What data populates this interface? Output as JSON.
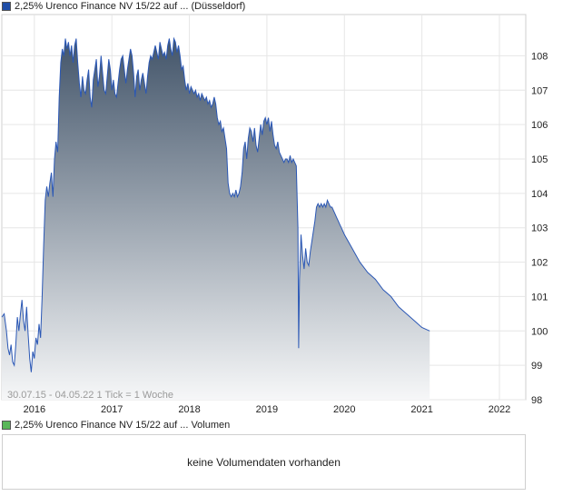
{
  "legend_price": {
    "label": "2,25% Urenco Finance NV 15/22 auf ... (Düsseldorf)",
    "color": "#1f4ea8"
  },
  "legend_volume": {
    "label": "2,25% Urenco Finance NV 15/22 auf ... Volumen",
    "color": "#59b759"
  },
  "range_label": "30.07.15 - 04.05.22   1 Tick = 1 Woche",
  "volume_message": "keine Volumendaten vorhanden",
  "chart_data": {
    "type": "area",
    "y_ticks": [
      98,
      99,
      100,
      101,
      102,
      103,
      104,
      105,
      106,
      107,
      108
    ],
    "ylim": [
      98,
      109.2
    ],
    "xlim": [
      2015.58,
      2022.34
    ],
    "x_ticks": [
      {
        "label": "2016",
        "x": 2016.0
      },
      {
        "label": "2017",
        "x": 2017.0
      },
      {
        "label": "2018",
        "x": 2018.0
      },
      {
        "label": "2019",
        "x": 2019.0
      },
      {
        "label": "2020",
        "x": 2020.0
      },
      {
        "label": "2021",
        "x": 2021.0
      },
      {
        "label": "2022",
        "x": 2022.0
      }
    ],
    "grid": true,
    "series": [
      {
        "line_color": "#2a57b5",
        "fill_top": "#43556a",
        "fill_bottom": "#f6f7f8",
        "points": [
          [
            2015.58,
            100.4
          ],
          [
            2015.61,
            100.5
          ],
          [
            2015.64,
            100.0
          ],
          [
            2015.66,
            99.5
          ],
          [
            2015.68,
            99.3
          ],
          [
            2015.7,
            99.6
          ],
          [
            2015.72,
            99.1
          ],
          [
            2015.74,
            99.0
          ],
          [
            2015.76,
            99.6
          ],
          [
            2015.78,
            100.4
          ],
          [
            2015.8,
            100.0
          ],
          [
            2015.82,
            100.5
          ],
          [
            2015.84,
            100.9
          ],
          [
            2015.86,
            100.3
          ],
          [
            2015.88,
            100.0
          ],
          [
            2015.9,
            100.7
          ],
          [
            2015.92,
            99.9
          ],
          [
            2015.94,
            99.2
          ],
          [
            2015.96,
            98.8
          ],
          [
            2015.98,
            99.4
          ],
          [
            2016.0,
            99.2
          ],
          [
            2016.02,
            99.8
          ],
          [
            2016.04,
            99.6
          ],
          [
            2016.06,
            100.2
          ],
          [
            2016.08,
            99.8
          ],
          [
            2016.1,
            101.0
          ],
          [
            2016.12,
            102.5
          ],
          [
            2016.14,
            103.8
          ],
          [
            2016.16,
            104.2
          ],
          [
            2016.18,
            103.9
          ],
          [
            2016.2,
            104.3
          ],
          [
            2016.22,
            104.6
          ],
          [
            2016.24,
            103.9
          ],
          [
            2016.26,
            105.0
          ],
          [
            2016.28,
            105.5
          ],
          [
            2016.3,
            105.2
          ],
          [
            2016.32,
            106.8
          ],
          [
            2016.34,
            107.8
          ],
          [
            2016.36,
            108.2
          ],
          [
            2016.38,
            108.0
          ],
          [
            2016.4,
            108.5
          ],
          [
            2016.42,
            108.2
          ],
          [
            2016.44,
            108.4
          ],
          [
            2016.46,
            108.0
          ],
          [
            2016.48,
            108.3
          ],
          [
            2016.5,
            107.8
          ],
          [
            2016.52,
            108.3
          ],
          [
            2016.54,
            108.5
          ],
          [
            2016.56,
            107.8
          ],
          [
            2016.58,
            107.2
          ],
          [
            2016.6,
            106.8
          ],
          [
            2016.62,
            107.4
          ],
          [
            2016.64,
            107.0
          ],
          [
            2016.66,
            106.9
          ],
          [
            2016.68,
            107.3
          ],
          [
            2016.7,
            107.6
          ],
          [
            2016.72,
            106.8
          ],
          [
            2016.74,
            106.5
          ],
          [
            2016.76,
            107.3
          ],
          [
            2016.78,
            107.6
          ],
          [
            2016.8,
            107.9
          ],
          [
            2016.82,
            107.1
          ],
          [
            2016.84,
            107.4
          ],
          [
            2016.86,
            108.0
          ],
          [
            2016.88,
            107.5
          ],
          [
            2016.9,
            107.0
          ],
          [
            2016.92,
            106.9
          ],
          [
            2016.94,
            107.4
          ],
          [
            2016.96,
            107.9
          ],
          [
            2016.98,
            107.6
          ],
          [
            2017.0,
            107.0
          ],
          [
            2017.02,
            107.3
          ],
          [
            2017.04,
            106.9
          ],
          [
            2017.06,
            106.8
          ],
          [
            2017.08,
            107.2
          ],
          [
            2017.1,
            107.6
          ],
          [
            2017.12,
            107.9
          ],
          [
            2017.14,
            108.0
          ],
          [
            2017.16,
            107.6
          ],
          [
            2017.18,
            107.2
          ],
          [
            2017.2,
            107.6
          ],
          [
            2017.22,
            107.9
          ],
          [
            2017.24,
            108.2
          ],
          [
            2017.26,
            108.0
          ],
          [
            2017.28,
            107.5
          ],
          [
            2017.3,
            106.8
          ],
          [
            2017.32,
            107.4
          ],
          [
            2017.34,
            107.6
          ],
          [
            2017.36,
            107.0
          ],
          [
            2017.38,
            107.3
          ],
          [
            2017.4,
            107.5
          ],
          [
            2017.42,
            107.2
          ],
          [
            2017.44,
            106.9
          ],
          [
            2017.46,
            107.4
          ],
          [
            2017.48,
            107.8
          ],
          [
            2017.5,
            108.0
          ],
          [
            2017.52,
            107.9
          ],
          [
            2017.54,
            108.1
          ],
          [
            2017.56,
            108.3
          ],
          [
            2017.58,
            108.1
          ],
          [
            2017.6,
            107.9
          ],
          [
            2017.62,
            108.4
          ],
          [
            2017.64,
            108.2
          ],
          [
            2017.66,
            108.0
          ],
          [
            2017.68,
            108.1
          ],
          [
            2017.7,
            107.9
          ],
          [
            2017.72,
            108.3
          ],
          [
            2017.74,
            108.5
          ],
          [
            2017.76,
            108.2
          ],
          [
            2017.78,
            108.0
          ],
          [
            2017.8,
            108.5
          ],
          [
            2017.82,
            108.4
          ],
          [
            2017.84,
            108.1
          ],
          [
            2017.86,
            108.3
          ],
          [
            2017.88,
            108.0
          ],
          [
            2017.9,
            107.6
          ],
          [
            2017.92,
            107.7
          ],
          [
            2017.94,
            107.3
          ],
          [
            2017.96,
            107.0
          ],
          [
            2017.98,
            107.2
          ],
          [
            2018.0,
            106.9
          ],
          [
            2018.02,
            107.1
          ],
          [
            2018.04,
            107.0
          ],
          [
            2018.06,
            106.9
          ],
          [
            2018.08,
            107.0
          ],
          [
            2018.1,
            106.8
          ],
          [
            2018.12,
            106.9
          ],
          [
            2018.14,
            106.7
          ],
          [
            2018.16,
            106.9
          ],
          [
            2018.18,
            106.8
          ],
          [
            2018.2,
            106.7
          ],
          [
            2018.22,
            106.8
          ],
          [
            2018.24,
            106.6
          ],
          [
            2018.26,
            106.7
          ],
          [
            2018.28,
            106.5
          ],
          [
            2018.3,
            106.6
          ],
          [
            2018.32,
            106.8
          ],
          [
            2018.34,
            106.6
          ],
          [
            2018.36,
            106.2
          ],
          [
            2018.38,
            106.0
          ],
          [
            2018.4,
            106.1
          ],
          [
            2018.42,
            105.8
          ],
          [
            2018.44,
            105.9
          ],
          [
            2018.46,
            105.6
          ],
          [
            2018.48,
            105.3
          ],
          [
            2018.5,
            104.3
          ],
          [
            2018.52,
            104.0
          ],
          [
            2018.54,
            103.9
          ],
          [
            2018.56,
            104.0
          ],
          [
            2018.58,
            103.9
          ],
          [
            2018.6,
            104.1
          ],
          [
            2018.62,
            103.9
          ],
          [
            2018.64,
            104.0
          ],
          [
            2018.66,
            104.2
          ],
          [
            2018.68,
            104.6
          ],
          [
            2018.7,
            105.3
          ],
          [
            2018.72,
            105.5
          ],
          [
            2018.74,
            105.0
          ],
          [
            2018.76,
            105.6
          ],
          [
            2018.78,
            105.9
          ],
          [
            2018.8,
            105.8
          ],
          [
            2018.82,
            105.5
          ],
          [
            2018.84,
            105.9
          ],
          [
            2018.86,
            105.4
          ],
          [
            2018.88,
            105.2
          ],
          [
            2018.9,
            105.6
          ],
          [
            2018.92,
            106.0
          ],
          [
            2018.94,
            105.7
          ],
          [
            2018.96,
            106.1
          ],
          [
            2018.98,
            106.2
          ],
          [
            2019.0,
            106.0
          ],
          [
            2019.02,
            106.2
          ],
          [
            2019.04,
            105.8
          ],
          [
            2019.06,
            106.1
          ],
          [
            2019.08,
            105.7
          ],
          [
            2019.1,
            105.4
          ],
          [
            2019.12,
            105.3
          ],
          [
            2019.14,
            105.5
          ],
          [
            2019.16,
            105.2
          ],
          [
            2019.18,
            105.1
          ],
          [
            2019.2,
            105.0
          ],
          [
            2019.22,
            104.9
          ],
          [
            2019.24,
            105.0
          ],
          [
            2019.26,
            105.0
          ],
          [
            2019.28,
            104.9
          ],
          [
            2019.3,
            105.1
          ],
          [
            2019.32,
            104.9
          ],
          [
            2019.34,
            105.0
          ],
          [
            2019.36,
            104.9
          ],
          [
            2019.38,
            104.8
          ],
          [
            2019.4,
            103.0
          ],
          [
            2019.41,
            99.5
          ],
          [
            2019.42,
            101.5
          ],
          [
            2019.44,
            102.8
          ],
          [
            2019.46,
            102.2
          ],
          [
            2019.48,
            101.8
          ],
          [
            2019.5,
            102.4
          ],
          [
            2019.52,
            102.0
          ],
          [
            2019.54,
            101.9
          ],
          [
            2019.56,
            102.3
          ],
          [
            2019.58,
            102.6
          ],
          [
            2019.6,
            102.9
          ],
          [
            2019.62,
            103.2
          ],
          [
            2019.64,
            103.6
          ],
          [
            2019.66,
            103.7
          ],
          [
            2019.68,
            103.6
          ],
          [
            2019.7,
            103.7
          ],
          [
            2019.72,
            103.6
          ],
          [
            2019.74,
            103.7
          ],
          [
            2019.76,
            103.6
          ],
          [
            2019.78,
            103.8
          ],
          [
            2019.8,
            103.7
          ],
          [
            2019.82,
            103.6
          ],
          [
            2019.84,
            103.6
          ],
          [
            2019.86,
            103.5
          ],
          [
            2019.88,
            103.4
          ],
          [
            2019.9,
            103.3
          ],
          [
            2019.92,
            103.2
          ],
          [
            2019.94,
            103.1
          ],
          [
            2019.96,
            103.0
          ],
          [
            2019.98,
            102.9
          ],
          [
            2020.0,
            102.8
          ],
          [
            2020.1,
            102.4
          ],
          [
            2020.2,
            102.0
          ],
          [
            2020.3,
            101.7
          ],
          [
            2020.4,
            101.5
          ],
          [
            2020.5,
            101.2
          ],
          [
            2020.6,
            101.0
          ],
          [
            2020.7,
            100.7
          ],
          [
            2020.8,
            100.5
          ],
          [
            2020.9,
            100.3
          ],
          [
            2021.0,
            100.1
          ],
          [
            2021.1,
            100.0
          ]
        ]
      }
    ]
  }
}
